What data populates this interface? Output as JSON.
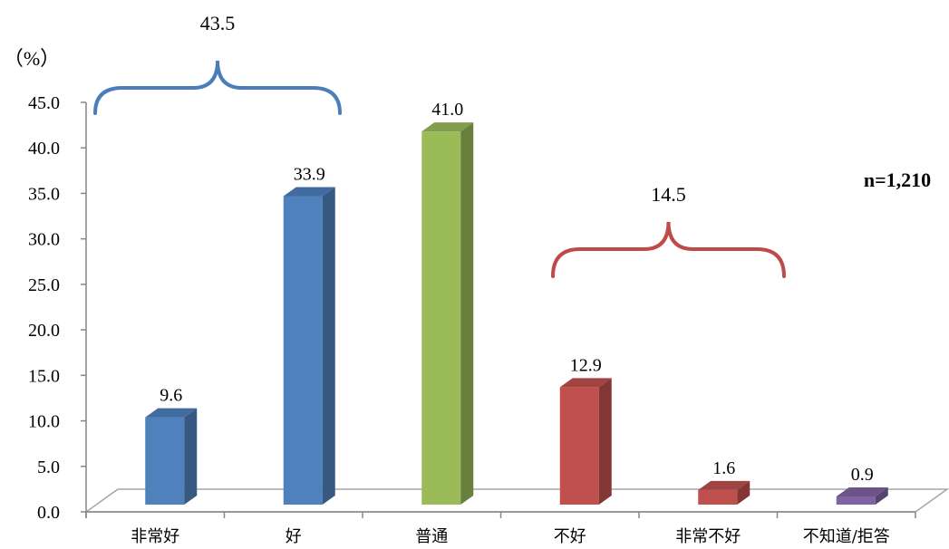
{
  "chart_data": {
    "type": "bar",
    "style": "3d-column",
    "categories": [
      "非常好",
      "好",
      "普通",
      "不好",
      "非常不好",
      "不知道/拒答"
    ],
    "values": [
      9.6,
      33.9,
      41.0,
      12.9,
      1.6,
      0.9
    ],
    "data_labels": [
      "9.6",
      "33.9",
      "41.0",
      "12.9",
      "1.6",
      "0.9"
    ],
    "bar_colors": [
      "#4F81BD",
      "#4F81BD",
      "#9BBB59",
      "#C0504D",
      "#C0504D",
      "#8064A2"
    ],
    "ylabel": "（%）",
    "ylim": [
      0,
      45
    ],
    "yticks": [
      "0.0",
      "5.0",
      "10.0",
      "15.0",
      "20.0",
      "25.0",
      "30.0",
      "35.0",
      "40.0",
      "45.0"
    ],
    "grid": false,
    "legend": "none",
    "annotation": "n=1,210",
    "groups": [
      {
        "label": "43.5",
        "categories": [
          "非常好",
          "好"
        ],
        "color": "#4A7EBB"
      },
      {
        "label": "14.5",
        "categories": [
          "不好",
          "非常不好"
        ],
        "color": "#BE4B48"
      }
    ]
  }
}
